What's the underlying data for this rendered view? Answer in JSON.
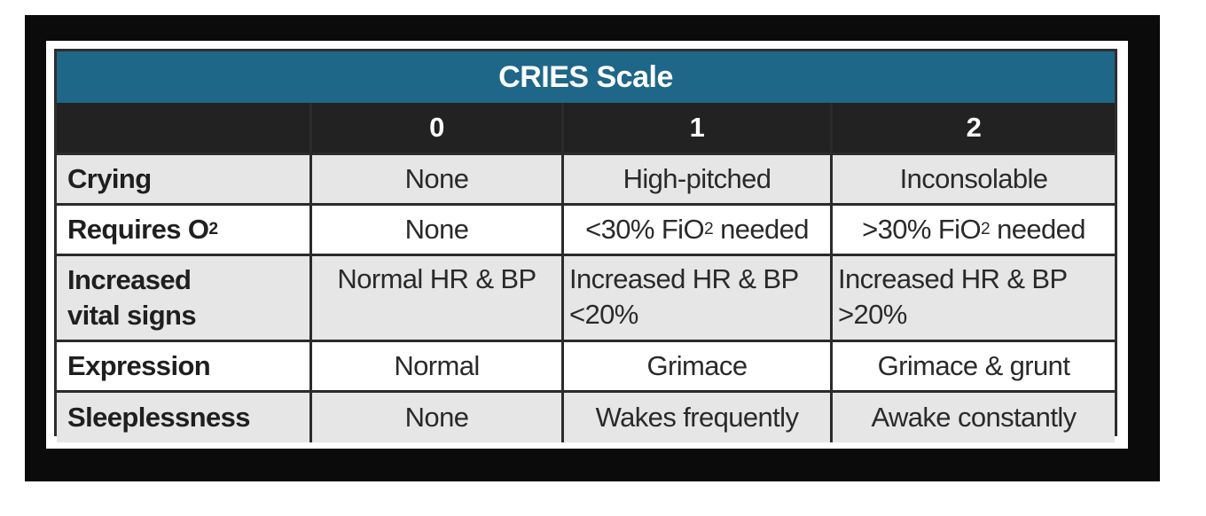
{
  "table": {
    "title": "CRIES Scale",
    "header": [
      "",
      "0",
      "1",
      "2"
    ],
    "rows": [
      {
        "label": "Crying",
        "c0": "None",
        "c1": "High-pitched",
        "c2": "Inconsolable"
      },
      {
        "label_main": "Requires O",
        "label_sub": "2",
        "c0": "None",
        "c1_pre": "<30% FiO",
        "c1_sub": "2",
        "c1_post": " needed",
        "c2_pre": ">30% FiO",
        "c2_sub": "2",
        "c2_post": " needed"
      },
      {
        "label_line1": "Increased",
        "label_line2": "vital signs",
        "c0": "Normal HR & BP",
        "c1_line1": "Increased HR & BP",
        "c1_line2": "<20%",
        "c2_line1": "Increased HR & BP",
        "c2_line2": ">20%"
      },
      {
        "label": "Expression",
        "c0": "Normal",
        "c1": "Grimace",
        "c2": "Grimace & grunt"
      },
      {
        "label": "Sleeplessness",
        "c0": "None",
        "c1": "Wakes frequently",
        "c2": "Awake constantly"
      }
    ]
  },
  "colors": {
    "title_bg": "#1e6788",
    "header_bg": "#222222",
    "shade_row": "#e6e6e6",
    "frame": "#0b0b0b"
  }
}
